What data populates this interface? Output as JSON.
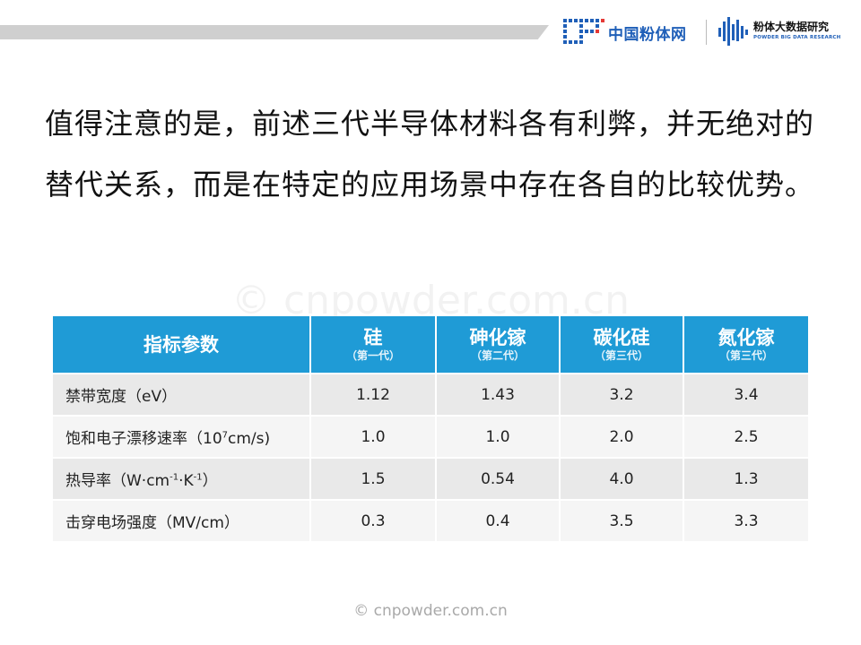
{
  "header": {
    "logo_cn": "中国粉体网",
    "brand_cn": "粉体大数据研究",
    "brand_en": "POWDER BIG DATA RESEARCH"
  },
  "body": {
    "paragraph": "值得注意的是，前述三代半导体材料各有利弊，并无绝对的替代关系，而是在特定的应用场景中存在各自的比较优势。"
  },
  "watermark_mid": "© cnpowder.com.cn",
  "table": {
    "header_label": "指标参数",
    "columns": [
      {
        "name": "硅",
        "generation": "（第一代）"
      },
      {
        "name": "砷化镓",
        "generation": "（第二代）"
      },
      {
        "name": "碳化硅",
        "generation": "（第三代）"
      },
      {
        "name": "氮化镓",
        "generation": "（第三代）"
      }
    ],
    "rows": [
      {
        "label": "禁带宽度（eV）",
        "values": [
          "1.12",
          "1.43",
          "3.2",
          "3.4"
        ]
      },
      {
        "label_main": "饱和电子漂移速率（10",
        "label_sup": "7",
        "label_tail": "cm/s)",
        "values": [
          "1.0",
          "1.0",
          "2.0",
          "2.5"
        ]
      },
      {
        "label_main": "热导率（W·cm",
        "label_sup1": "-1",
        "label_mid": "·K",
        "label_sup2": "-1",
        "label_tail": "）",
        "values": [
          "1.5",
          "0.54",
          "4.0",
          "1.3"
        ]
      },
      {
        "label": "击穿电场强度（MV/cm）",
        "values": [
          "0.3",
          "0.4",
          "3.5",
          "3.3"
        ]
      }
    ]
  },
  "footer": {
    "watermark": "© cnpowder.com.cn"
  }
}
